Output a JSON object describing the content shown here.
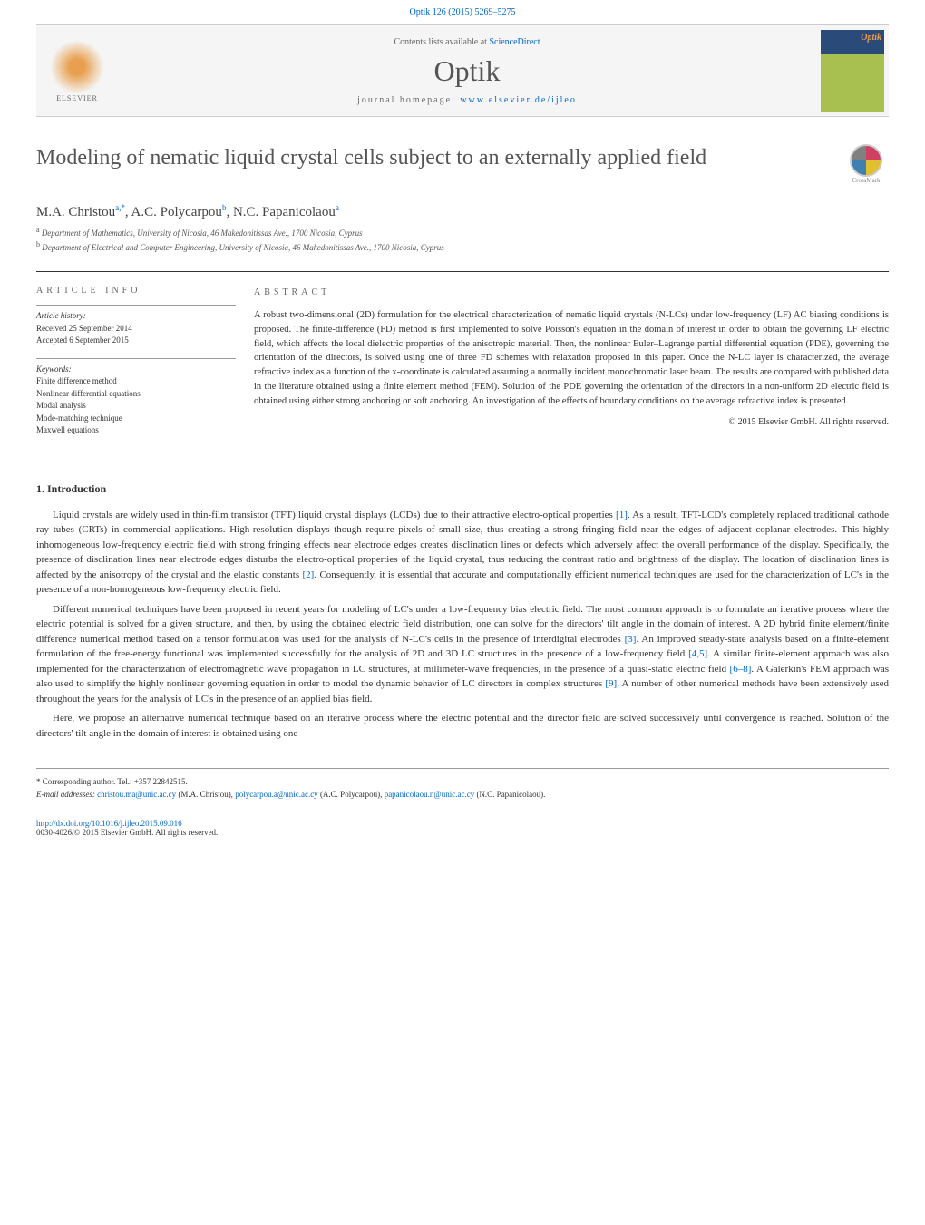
{
  "header": {
    "citation": "Optik 126 (2015) 5269–5275",
    "contents_prefix": "Contents lists available at ",
    "contents_link": "ScienceDirect",
    "journal_name": "Optik",
    "homepage_prefix": "journal homepage: ",
    "homepage_link": "www.elsevier.de/ijleo",
    "publisher": "ELSEVIER",
    "cover_title": "Optik"
  },
  "article": {
    "title": "Modeling of nematic liquid crystal cells subject to an externally applied field",
    "crossmark": "CrossMark",
    "authors_html": "M.A. Christou<sup>a,*</sup>, A.C. Polycarpou<sup>b</sup>, N.C. Papanicolaou<sup>a</sup>",
    "affiliations": [
      {
        "sup": "a",
        "text": "Department of Mathematics, University of Nicosia, 46 Makedonitissas Ave., 1700 Nicosia, Cyprus"
      },
      {
        "sup": "b",
        "text": "Department of Electrical and Computer Engineering, University of Nicosia, 46 Makedonitissas Ave., 1700 Nicosia, Cyprus"
      }
    ]
  },
  "info": {
    "heading": "ARTICLE INFO",
    "history_label": "Article history:",
    "received": "Received 25 September 2014",
    "accepted": "Accepted 6 September 2015",
    "keywords_label": "Keywords:",
    "keywords": [
      "Finite difference method",
      "Nonlinear differential equations",
      "Modal analysis",
      "Mode-matching technique",
      "Maxwell equations"
    ]
  },
  "abstract": {
    "heading": "ABSTRACT",
    "text": "A robust two-dimensional (2D) formulation for the electrical characterization of nematic liquid crystals (N-LCs) under low-frequency (LF) AC biasing conditions is proposed. The finite-difference (FD) method is first implemented to solve Poisson's equation in the domain of interest in order to obtain the governing LF electric field, which affects the local dielectric properties of the anisotropic material. Then, the nonlinear Euler–Lagrange partial differential equation (PDE), governing the orientation of the directors, is solved using one of three FD schemes with relaxation proposed in this paper. Once the N-LC layer is characterized, the average refractive index as a function of the x-coordinate is calculated assuming a normally incident monochromatic laser beam. The results are compared with published data in the literature obtained using a finite element method (FEM). Solution of the PDE governing the orientation of the directors in a non-uniform 2D electric field is obtained using either strong anchoring or soft anchoring. An investigation of the effects of boundary conditions on the average refractive index is presented.",
    "copyright": "© 2015 Elsevier GmbH. All rights reserved."
  },
  "body": {
    "section_title": "1. Introduction",
    "paragraphs": [
      "Liquid crystals are widely used in thin-film transistor (TFT) liquid crystal displays (LCDs) due to their attractive electro-optical properties <span class='ref'>[1]</span>. As a result, TFT-LCD's completely replaced traditional cathode ray tubes (CRTs) in commercial applications. High-resolution displays though require pixels of small size, thus creating a strong fringing field near the edges of adjacent coplanar electrodes. This highly inhomogeneous low-frequency electric field with strong fringing effects near electrode edges creates disclination lines or defects which adversely affect the overall performance of the display. Specifically, the presence of disclination lines near electrode edges disturbs the electro-optical properties of the liquid crystal, thus reducing the contrast ratio and brightness of the display. The location of disclination lines is affected by the anisotropy of the crystal and the elastic constants <span class='ref'>[2]</span>. Consequently, it is essential that accurate and computationally efficient numerical techniques are used for the characterization of LC's in the presence of a non-homogeneous low-frequency electric field.",
      "Different numerical techniques have been proposed in recent years for modeling of LC's under a low-frequency bias electric field. The most common approach is to formulate an iterative process where the electric potential is solved for a given structure, and then, by using the obtained electric field distribution, one can solve for the directors' tilt angle in the domain of interest. A 2D hybrid finite element/finite difference numerical method based on a tensor formulation was used for the analysis of N-LC's cells in the presence of interdigital electrodes <span class='ref'>[3]</span>. An improved steady-state analysis based on a finite-element formulation of the free-energy functional was implemented successfully for the analysis of 2D and 3D LC structures in the presence of a low-frequency field <span class='ref'>[4,5]</span>. A similar finite-element approach was also implemented for the characterization of electromagnetic wave propagation in LC structures, at millimeter-wave frequencies, in the presence of a quasi-static electric field <span class='ref'>[6–8]</span>. A Galerkin's FEM approach was also used to simplify the highly nonlinear governing equation in order to model the dynamic behavior of LC directors in complex structures <span class='ref'>[9]</span>. A number of other numerical methods have been extensively used throughout the years for the analysis of LC's in the presence of an applied bias field.",
      "Here, we propose an alternative numerical technique based on an iterative process where the electric potential and the director field are solved successively until convergence is reached. Solution of the directors' tilt angle in the domain of interest is obtained using one"
    ]
  },
  "footer": {
    "corresponding": "* Corresponding author. Tel.: +357 22842515.",
    "email_label": "E-mail addresses: ",
    "emails": [
      {
        "addr": "christou.ma@unic.ac.cy",
        "who": " (M.A. Christou), "
      },
      {
        "addr": "polycarpou.a@unic.ac.cy",
        "who": " (A.C. Polycarpou), "
      },
      {
        "addr": "papanicolaou.n@unic.ac.cy",
        "who": " (N.C. Papanicolaou)."
      }
    ],
    "doi": "http://dx.doi.org/10.1016/j.ijleo.2015.09.016",
    "issn": "0030-4026/© 2015 Elsevier GmbH. All rights reserved."
  }
}
